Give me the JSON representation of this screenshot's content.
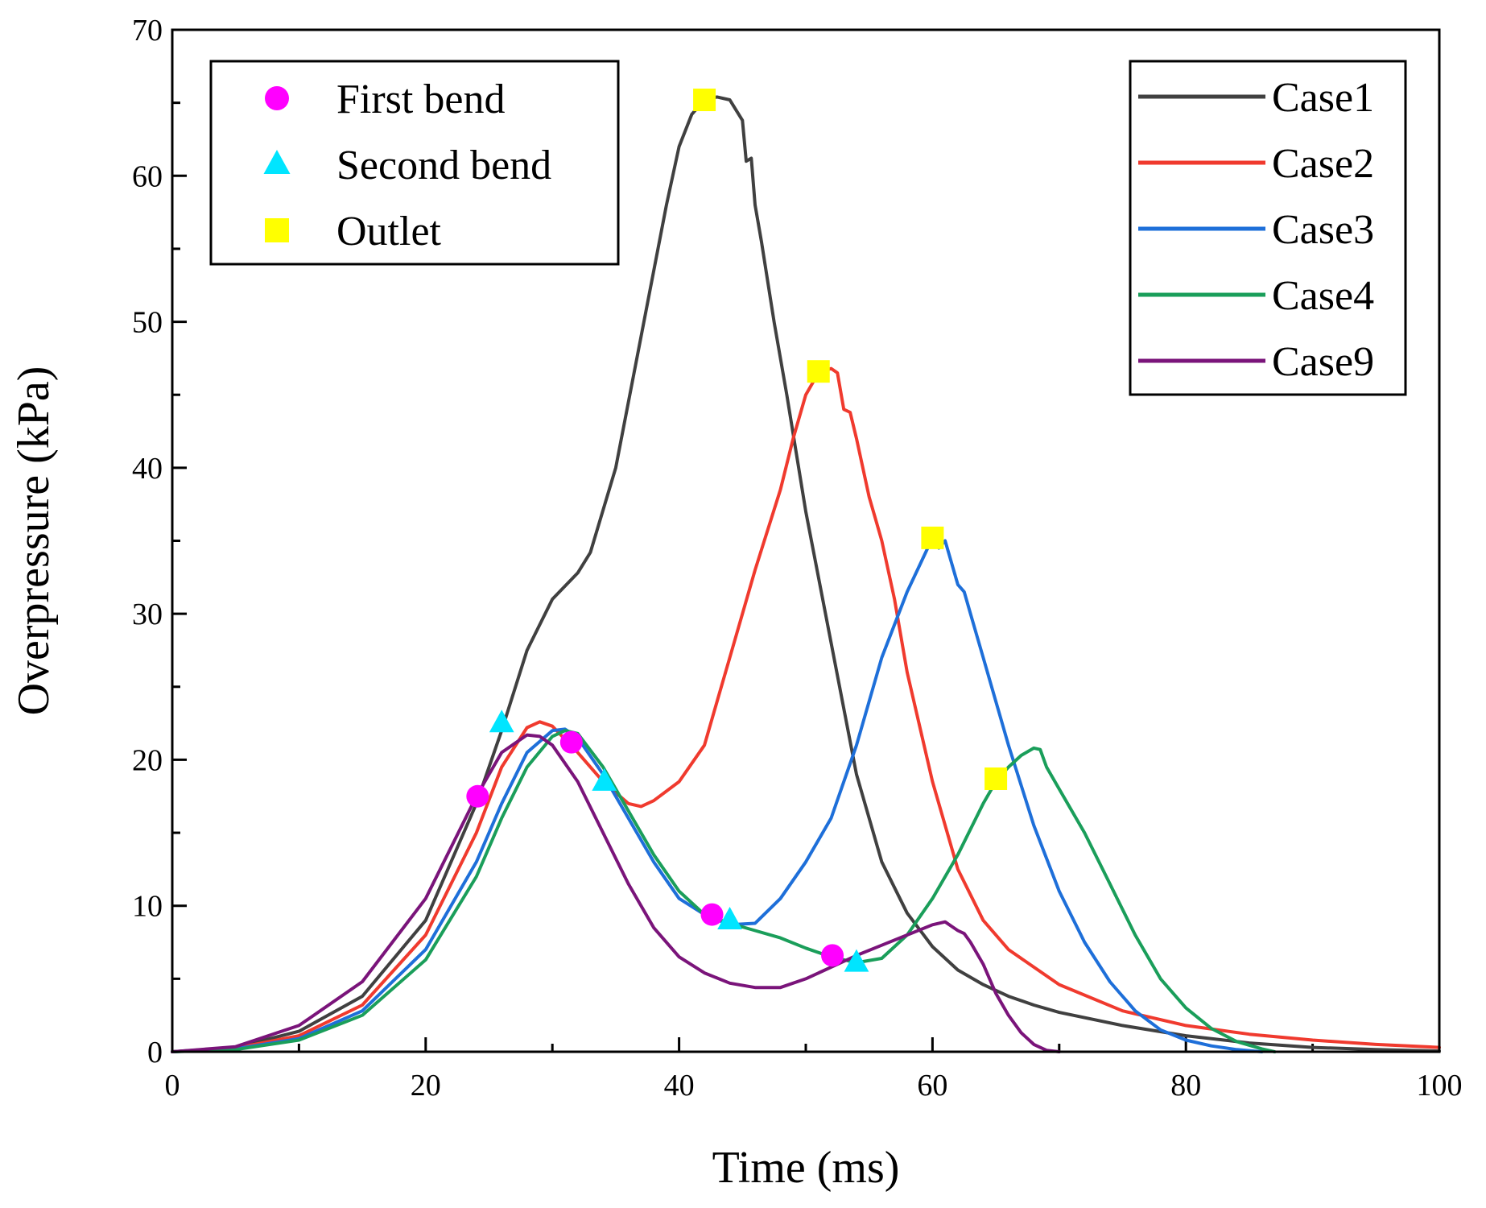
{
  "chart_data": {
    "type": "line",
    "title": "",
    "xlabel": "Time (ms)",
    "ylabel": "Overpressure (kPa)",
    "xlim": [
      0,
      100
    ],
    "ylim": [
      0,
      70
    ],
    "xticks": [
      0,
      20,
      40,
      60,
      80,
      100
    ],
    "yticks": [
      0,
      10,
      20,
      30,
      40,
      50,
      60,
      70
    ],
    "grid": false,
    "series": [
      {
        "name": "Case1",
        "color": "#404040",
        "points": [
          [
            0,
            0
          ],
          [
            5,
            0.3
          ],
          [
            10,
            1.4
          ],
          [
            15,
            3.8
          ],
          [
            20,
            9
          ],
          [
            24,
            17
          ],
          [
            26,
            22
          ],
          [
            28,
            27.5
          ],
          [
            30,
            31
          ],
          [
            32,
            32.8
          ],
          [
            33,
            34.2
          ],
          [
            35,
            40
          ],
          [
            37,
            49
          ],
          [
            39,
            58
          ],
          [
            40,
            62
          ],
          [
            41,
            64.2
          ],
          [
            42,
            65.2
          ],
          [
            43,
            65.4
          ],
          [
            44,
            65.2
          ],
          [
            44.5,
            64.5
          ],
          [
            45,
            63.8
          ],
          [
            45.3,
            61
          ],
          [
            45.7,
            61.2
          ],
          [
            46,
            58
          ],
          [
            46.5,
            55.5
          ],
          [
            47.5,
            50
          ],
          [
            48.5,
            45
          ],
          [
            50,
            37
          ],
          [
            52,
            28
          ],
          [
            54,
            19
          ],
          [
            56,
            13
          ],
          [
            58,
            9.5
          ],
          [
            60,
            7.2
          ],
          [
            62,
            5.6
          ],
          [
            64,
            4.6
          ],
          [
            66,
            3.8
          ],
          [
            68,
            3.2
          ],
          [
            70,
            2.7
          ],
          [
            75,
            1.8
          ],
          [
            80,
            1.1
          ],
          [
            85,
            0.6
          ],
          [
            90,
            0.3
          ],
          [
            95,
            0.15
          ],
          [
            100,
            0.05
          ]
        ]
      },
      {
        "name": "Case2",
        "color": "#f03a2e",
        "points": [
          [
            0,
            0
          ],
          [
            5,
            0.25
          ],
          [
            10,
            1.1
          ],
          [
            15,
            3.2
          ],
          [
            20,
            8
          ],
          [
            24,
            15
          ],
          [
            26,
            19.5
          ],
          [
            28,
            22.2
          ],
          [
            29,
            22.6
          ],
          [
            30,
            22.3
          ],
          [
            32,
            20.5
          ],
          [
            34,
            18.5
          ],
          [
            36,
            17
          ],
          [
            37,
            16.8
          ],
          [
            38,
            17.2
          ],
          [
            40,
            18.5
          ],
          [
            42,
            21
          ],
          [
            43,
            24
          ],
          [
            44,
            27
          ],
          [
            46,
            33
          ],
          [
            48,
            38.5
          ],
          [
            49,
            42
          ],
          [
            50,
            45
          ],
          [
            51,
            46.5
          ],
          [
            52,
            46.8
          ],
          [
            52.5,
            46.5
          ],
          [
            53,
            44
          ],
          [
            53.5,
            43.8
          ],
          [
            54,
            42
          ],
          [
            55,
            38
          ],
          [
            55.5,
            36.5
          ],
          [
            56,
            35
          ],
          [
            57,
            31
          ],
          [
            58,
            26
          ],
          [
            60,
            18.5
          ],
          [
            62,
            12.5
          ],
          [
            64,
            9
          ],
          [
            66,
            7
          ],
          [
            68,
            5.8
          ],
          [
            70,
            4.6
          ],
          [
            75,
            2.8
          ],
          [
            80,
            1.8
          ],
          [
            85,
            1.2
          ],
          [
            90,
            0.8
          ],
          [
            95,
            0.5
          ],
          [
            100,
            0.3
          ]
        ]
      },
      {
        "name": "Case3",
        "color": "#1e6fd9",
        "points": [
          [
            0,
            0
          ],
          [
            5,
            0.2
          ],
          [
            10,
            0.9
          ],
          [
            15,
            2.8
          ],
          [
            20,
            7
          ],
          [
            24,
            13
          ],
          [
            26,
            17
          ],
          [
            28,
            20.5
          ],
          [
            30,
            22
          ],
          [
            31,
            22.1
          ],
          [
            32,
            21.5
          ],
          [
            34,
            19
          ],
          [
            36,
            16
          ],
          [
            38,
            13
          ],
          [
            40,
            10.5
          ],
          [
            42,
            9.4
          ],
          [
            44,
            8.7
          ],
          [
            46,
            8.8
          ],
          [
            48,
            10.5
          ],
          [
            50,
            13
          ],
          [
            52,
            16
          ],
          [
            54,
            21
          ],
          [
            56,
            27
          ],
          [
            58,
            31.5
          ],
          [
            60,
            35.2
          ],
          [
            60.5,
            34.5
          ],
          [
            61,
            35
          ],
          [
            62,
            32
          ],
          [
            62.5,
            31.5
          ],
          [
            63,
            30
          ],
          [
            64,
            27
          ],
          [
            65,
            24
          ],
          [
            66,
            21
          ],
          [
            68,
            15.5
          ],
          [
            70,
            11
          ],
          [
            72,
            7.5
          ],
          [
            74,
            4.8
          ],
          [
            76,
            2.8
          ],
          [
            78,
            1.5
          ],
          [
            80,
            0.8
          ],
          [
            82,
            0.4
          ],
          [
            84,
            0.15
          ],
          [
            86,
            0
          ]
        ]
      },
      {
        "name": "Case4",
        "color": "#1a9e5a",
        "points": [
          [
            0,
            0
          ],
          [
            5,
            0.15
          ],
          [
            10,
            0.8
          ],
          [
            15,
            2.5
          ],
          [
            20,
            6.3
          ],
          [
            24,
            12
          ],
          [
            26,
            16
          ],
          [
            28,
            19.5
          ],
          [
            30,
            21.6
          ],
          [
            31,
            22
          ],
          [
            32,
            21.8
          ],
          [
            34,
            19.5
          ],
          [
            36,
            16.5
          ],
          [
            38,
            13.5
          ],
          [
            40,
            11
          ],
          [
            42,
            9.4
          ],
          [
            44,
            8.8
          ],
          [
            46,
            8.3
          ],
          [
            48,
            7.8
          ],
          [
            50,
            7.1
          ],
          [
            52,
            6.5
          ],
          [
            54,
            6.1
          ],
          [
            56,
            6.4
          ],
          [
            58,
            8
          ],
          [
            60,
            10.5
          ],
          [
            62,
            13.5
          ],
          [
            64,
            17
          ],
          [
            65,
            18.5
          ],
          [
            66,
            19.5
          ],
          [
            67,
            20.3
          ],
          [
            68,
            20.8
          ],
          [
            68.5,
            20.7
          ],
          [
            69,
            19.5
          ],
          [
            70,
            18
          ],
          [
            71,
            16.5
          ],
          [
            72,
            15
          ],
          [
            74,
            11.5
          ],
          [
            76,
            8
          ],
          [
            78,
            5
          ],
          [
            80,
            3
          ],
          [
            82,
            1.6
          ],
          [
            84,
            0.7
          ],
          [
            86,
            0.2
          ],
          [
            87,
            0
          ]
        ]
      },
      {
        "name": "Case9",
        "color": "#7a147a",
        "points": [
          [
            0,
            0
          ],
          [
            5,
            0.35
          ],
          [
            10,
            1.8
          ],
          [
            15,
            4.8
          ],
          [
            20,
            10.5
          ],
          [
            24,
            17.5
          ],
          [
            26,
            20.5
          ],
          [
            28,
            21.7
          ],
          [
            29,
            21.6
          ],
          [
            30,
            21
          ],
          [
            32,
            18.5
          ],
          [
            34,
            15
          ],
          [
            36,
            11.5
          ],
          [
            38,
            8.5
          ],
          [
            40,
            6.5
          ],
          [
            42,
            5.4
          ],
          [
            44,
            4.7
          ],
          [
            46,
            4.4
          ],
          [
            48,
            4.4
          ],
          [
            50,
            5
          ],
          [
            52,
            5.8
          ],
          [
            54,
            6.6
          ],
          [
            56,
            7.3
          ],
          [
            58,
            8
          ],
          [
            60,
            8.7
          ],
          [
            61,
            8.9
          ],
          [
            61.5,
            8.6
          ],
          [
            62,
            8.3
          ],
          [
            62.5,
            8.1
          ],
          [
            63,
            7.5
          ],
          [
            64,
            6
          ],
          [
            65,
            4
          ],
          [
            66,
            2.5
          ],
          [
            67,
            1.3
          ],
          [
            68,
            0.5
          ],
          [
            69,
            0.1
          ],
          [
            70,
            0
          ]
        ]
      }
    ],
    "markers": [
      {
        "name": "First bend",
        "shape": "circle",
        "color": "#ff00ff",
        "points": [
          [
            24.1,
            17.5
          ],
          [
            31.5,
            21.2
          ],
          [
            42.6,
            9.4
          ],
          [
            52.1,
            6.6
          ]
        ]
      },
      {
        "name": "Second bend",
        "shape": "triangle",
        "color": "#00e5ff",
        "points": [
          [
            26,
            22.5
          ],
          [
            34.1,
            18.5
          ],
          [
            44,
            9
          ],
          [
            54,
            6.1
          ]
        ]
      },
      {
        "name": "Outlet",
        "shape": "square",
        "color": "#ffff00",
        "points": [
          [
            42,
            65.2
          ],
          [
            51,
            46.6
          ],
          [
            60,
            35.2
          ],
          [
            65,
            18.7
          ]
        ]
      }
    ],
    "legend_markers_placement": "top-left",
    "legend_lines_placement": "top-right"
  }
}
